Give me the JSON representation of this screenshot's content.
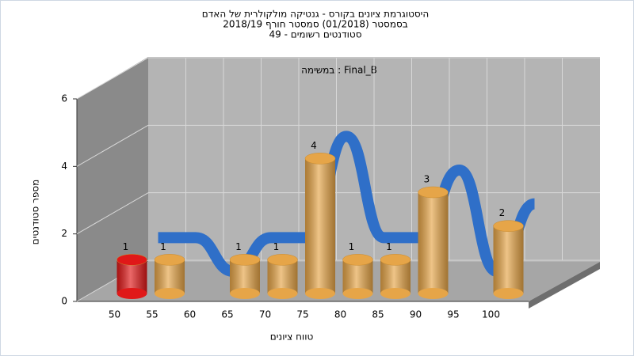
{
  "chart_data": {
    "type": "bar3d",
    "title": [
      "היסטוגרמת ציונים בקורס - גנטיקה מולקולרית של האדם",
      "בסמסטר  (01/2018)  סמסטר חורף 2018/19",
      "סטודנטים רשומים - 49"
    ],
    "annotation": "במשימה : Final_B",
    "x_label": "טווח ציונים",
    "y_label": "מספר סטודנטים",
    "categories": [
      "50",
      "55",
      "60",
      "65",
      "70",
      "75",
      "80",
      "85",
      "90",
      "95",
      "100"
    ],
    "values": [
      1,
      1,
      0,
      1,
      1,
      4,
      1,
      1,
      3,
      0,
      2
    ],
    "bar_colors": [
      "#e01818",
      "#e6a548",
      "#e6a548",
      "#e6a548",
      "#e6a548",
      "#e6a548",
      "#e6a548",
      "#e6a548",
      "#e6a548",
      "#e6a548",
      "#e6a548"
    ],
    "line_color": "#2f6fc8",
    "ylim": [
      0,
      6
    ],
    "yticks": [
      0,
      2,
      4,
      6
    ],
    "grid": true
  }
}
